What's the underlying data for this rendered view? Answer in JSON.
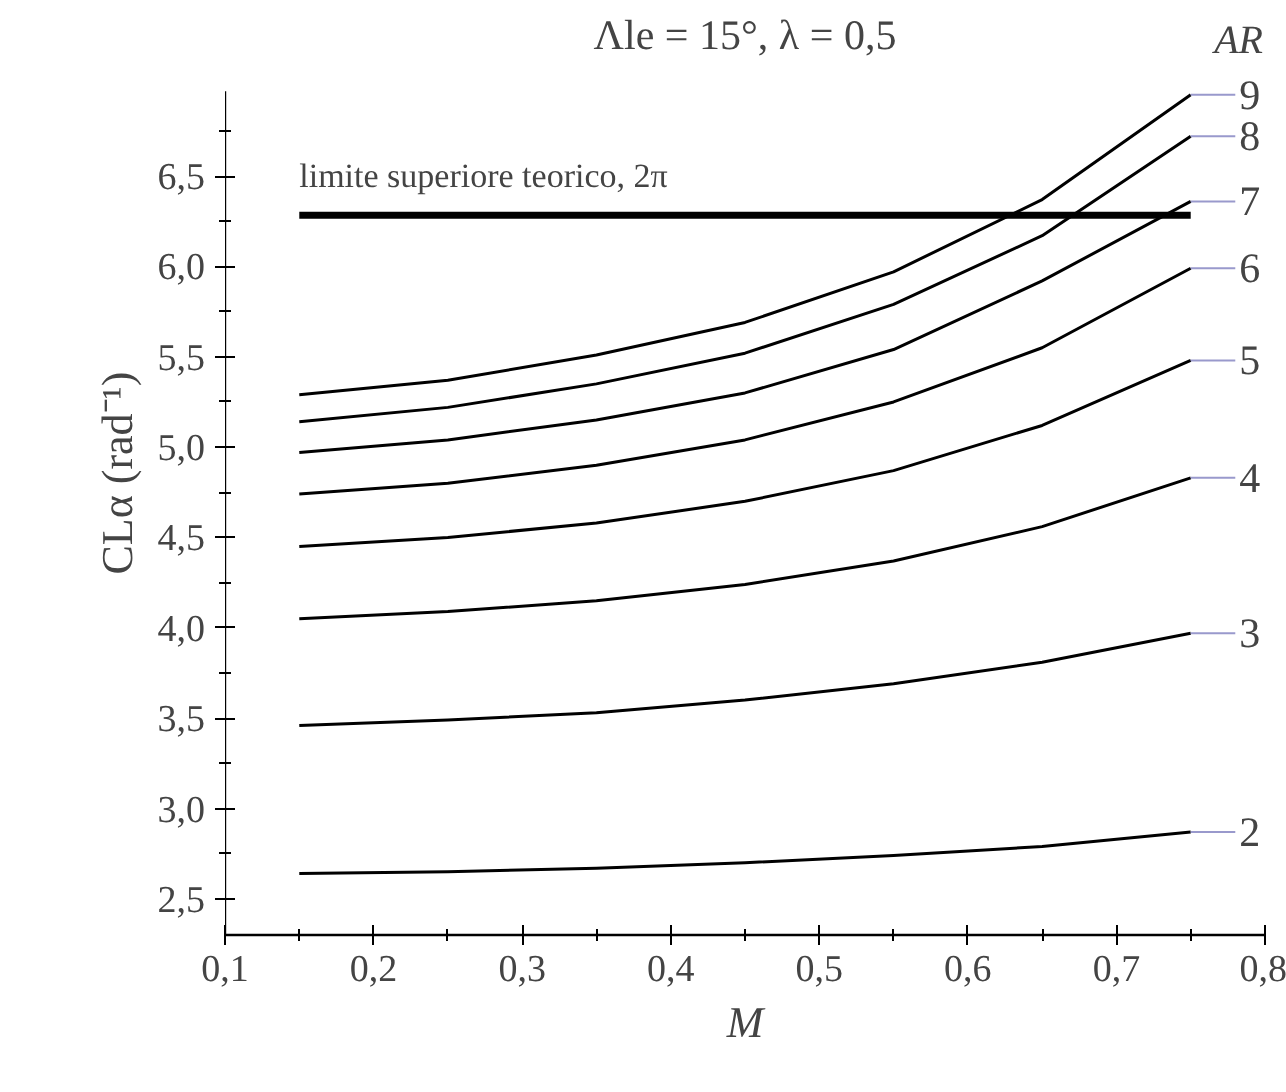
{
  "chart_data": {
    "type": "line",
    "title": "Λle = 15°, λ = 0,5",
    "xlabel": "M",
    "ylabel": "CLα (rad⁻¹)",
    "legend_title": "AR",
    "x": [
      0.15,
      0.25,
      0.35,
      0.45,
      0.55,
      0.65,
      0.75
    ],
    "series": [
      {
        "name": "2",
        "color": "#000000",
        "values": [
          2.64,
          2.65,
          2.67,
          2.7,
          2.74,
          2.79,
          2.87
        ]
      },
      {
        "name": "3",
        "color": "#000000",
        "values": [
          3.46,
          3.49,
          3.53,
          3.6,
          3.69,
          3.81,
          3.97
        ]
      },
      {
        "name": "4",
        "color": "#000000",
        "values": [
          4.05,
          4.09,
          4.15,
          4.24,
          4.37,
          4.56,
          4.83
        ]
      },
      {
        "name": "5",
        "color": "#000000",
        "values": [
          4.45,
          4.5,
          4.58,
          4.7,
          4.87,
          5.12,
          5.48
        ]
      },
      {
        "name": "6",
        "color": "#000000",
        "values": [
          4.74,
          4.8,
          4.9,
          5.04,
          5.25,
          5.55,
          5.99
        ]
      },
      {
        "name": "7",
        "color": "#000000",
        "values": [
          4.97,
          5.04,
          5.15,
          5.3,
          5.54,
          5.92,
          6.36
        ]
      },
      {
        "name": "8",
        "color": "#000000",
        "values": [
          5.14,
          5.22,
          5.35,
          5.52,
          5.79,
          6.17,
          6.72
        ]
      },
      {
        "name": "9",
        "color": "#000000",
        "values": [
          5.29,
          5.37,
          5.51,
          5.69,
          5.97,
          6.37,
          6.95
        ]
      }
    ],
    "ref_lines": [
      {
        "axis": "y",
        "value": 6.2832,
        "label": "limite superiore teorico, 2π",
        "color": "#000000"
      }
    ],
    "xlim": [
      0.1,
      0.8
    ],
    "ylim": [
      2.3,
      6.97
    ],
    "xticks": [
      {
        "value": 0.1,
        "label": "0,1"
      },
      {
        "value": 0.15,
        "label": null
      },
      {
        "value": 0.2,
        "label": "0,2"
      },
      {
        "value": 0.25,
        "label": null
      },
      {
        "value": 0.3,
        "label": "0,3"
      },
      {
        "value": 0.35,
        "label": null
      },
      {
        "value": 0.4,
        "label": "0,4"
      },
      {
        "value": 0.45,
        "label": null
      },
      {
        "value": 0.5,
        "label": "0,5"
      },
      {
        "value": 0.55,
        "label": null
      },
      {
        "value": 0.6,
        "label": "0,6"
      },
      {
        "value": 0.65,
        "label": null
      },
      {
        "value": 0.7,
        "label": "0,7"
      },
      {
        "value": 0.75,
        "label": null
      },
      {
        "value": 0.8,
        "label": "0,8"
      }
    ],
    "yticks": [
      {
        "value": 2.5,
        "label": "2,5"
      },
      {
        "value": 2.75,
        "label": null
      },
      {
        "value": 3.0,
        "label": "3,0"
      },
      {
        "value": 3.25,
        "label": null
      },
      {
        "value": 3.5,
        "label": "3,5"
      },
      {
        "value": 3.75,
        "label": null
      },
      {
        "value": 4.0,
        "label": "4,0"
      },
      {
        "value": 4.25,
        "label": null
      },
      {
        "value": 4.5,
        "label": "4,5"
      },
      {
        "value": 4.75,
        "label": null
      },
      {
        "value": 5.0,
        "label": "5,0"
      },
      {
        "value": 5.25,
        "label": null
      },
      {
        "value": 5.5,
        "label": "5,5"
      },
      {
        "value": 5.75,
        "label": null
      },
      {
        "value": 6.0,
        "label": "6,0"
      },
      {
        "value": 6.25,
        "label": null
      },
      {
        "value": 6.5,
        "label": "6,5"
      },
      {
        "value": 6.75,
        "label": null
      }
    ],
    "grid": false,
    "marker": "none",
    "line_style": "solid"
  }
}
